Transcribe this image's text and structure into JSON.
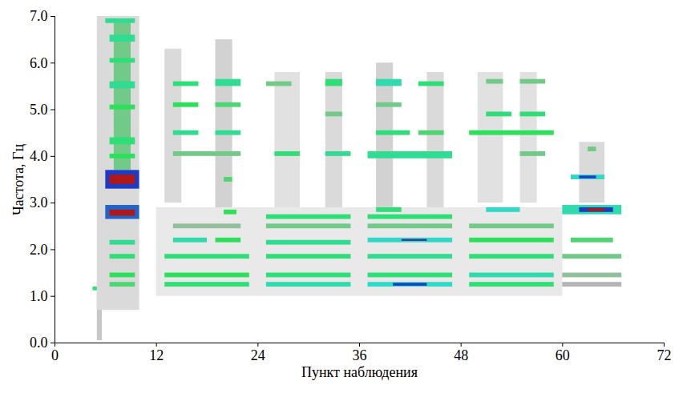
{
  "chart_data": {
    "type": "heatmap",
    "xlabel": "Пункт наблюдения",
    "ylabel": "Частота, Гц",
    "xlim": [
      0,
      72
    ],
    "xticks": [
      0,
      12,
      24,
      36,
      48,
      60,
      72
    ],
    "ylim": [
      0,
      7
    ],
    "yticks": [
      0,
      1,
      2,
      3,
      4,
      5,
      6,
      7
    ],
    "zlim": [
      0,
      1
    ],
    "colors": [
      "#ffffff",
      "#b4b4b4",
      "#2de05a",
      "#30d8c8",
      "#1c3cc8",
      "#b01818"
    ],
    "grid": false,
    "cells": [
      {
        "x1": 5,
        "x2": 5.6,
        "y1": 0.05,
        "y2": 1.3,
        "value": 0.15
      },
      {
        "x1": 5,
        "x2": 10,
        "y1": 0.7,
        "y2": 7,
        "value": 0.1
      },
      {
        "x1": 13,
        "x2": 15,
        "y1": 3.0,
        "y2": 6.3,
        "value": 0.1
      },
      {
        "x1": 19,
        "x2": 21,
        "y1": 2.5,
        "y2": 6.5,
        "value": 0.12
      },
      {
        "x1": 26,
        "x2": 29,
        "y1": 2.8,
        "y2": 5.8,
        "value": 0.08
      },
      {
        "x1": 32,
        "x2": 34,
        "y1": 2.8,
        "y2": 5.8,
        "value": 0.1
      },
      {
        "x1": 38,
        "x2": 40,
        "y1": 2.9,
        "y2": 6.0,
        "value": 0.12
      },
      {
        "x1": 44,
        "x2": 46,
        "y1": 2.8,
        "y2": 5.8,
        "value": 0.1
      },
      {
        "x1": 50,
        "x2": 53,
        "y1": 3.0,
        "y2": 5.8,
        "value": 0.08
      },
      {
        "x1": 55,
        "x2": 57,
        "y1": 3.0,
        "y2": 5.8,
        "value": 0.08
      },
      {
        "x1": 62,
        "x2": 65,
        "y1": 3.0,
        "y2": 4.3,
        "value": 0.1
      },
      {
        "x1": 12,
        "x2": 60,
        "y1": 1.0,
        "y2": 2.9,
        "value": 0.06
      },
      {
        "x1": 7,
        "x2": 9,
        "y1": 3.7,
        "y2": 6.9,
        "value": 0.3
      },
      {
        "x1": 6,
        "x2": 9.5,
        "y1": 6.85,
        "y2": 6.95,
        "value": 0.5
      },
      {
        "x1": 6.5,
        "x2": 9.5,
        "y1": 6.45,
        "y2": 6.6,
        "value": 0.5
      },
      {
        "x1": 6.5,
        "x2": 9.5,
        "y1": 6.0,
        "y2": 6.1,
        "value": 0.45
      },
      {
        "x1": 6.5,
        "x2": 9.5,
        "y1": 5.45,
        "y2": 5.6,
        "value": 0.5
      },
      {
        "x1": 6.5,
        "x2": 9.5,
        "y1": 5.0,
        "y2": 5.1,
        "value": 0.4
      },
      {
        "x1": 6.5,
        "x2": 9.5,
        "y1": 4.25,
        "y2": 4.4,
        "value": 0.45
      },
      {
        "x1": 6.5,
        "x2": 9.5,
        "y1": 3.95,
        "y2": 4.05,
        "value": 0.4
      },
      {
        "x1": 6,
        "x2": 10,
        "y1": 3.3,
        "y2": 3.7,
        "value": 0.8
      },
      {
        "x1": 6.5,
        "x2": 9.5,
        "y1": 3.4,
        "y2": 3.6,
        "value": 1
      },
      {
        "x1": 6,
        "x2": 10,
        "y1": 2.65,
        "y2": 2.95,
        "value": 0.75
      },
      {
        "x1": 6.5,
        "x2": 9.5,
        "y1": 2.72,
        "y2": 2.85,
        "value": 1
      },
      {
        "x1": 6.5,
        "x2": 9.5,
        "y1": 2.1,
        "y2": 2.2,
        "value": 0.5
      },
      {
        "x1": 6.5,
        "x2": 9.5,
        "y1": 1.8,
        "y2": 1.9,
        "value": 0.45
      },
      {
        "x1": 6.5,
        "x2": 9.5,
        "y1": 1.4,
        "y2": 1.5,
        "value": 0.4
      },
      {
        "x1": 6.5,
        "x2": 9.5,
        "y1": 1.2,
        "y2": 1.3,
        "value": 0.35
      },
      {
        "x1": 4.5,
        "x2": 5,
        "y1": 1.12,
        "y2": 1.2,
        "value": 0.45
      },
      {
        "x1": 13,
        "x2": 23,
        "y1": 1.2,
        "y2": 1.3,
        "value": 0.45
      },
      {
        "x1": 13,
        "x2": 23,
        "y1": 1.4,
        "y2": 1.5,
        "value": 0.4
      },
      {
        "x1": 13,
        "x2": 23,
        "y1": 1.8,
        "y2": 1.9,
        "value": 0.45
      },
      {
        "x1": 14,
        "x2": 18,
        "y1": 2.15,
        "y2": 2.25,
        "value": 0.55
      },
      {
        "x1": 19,
        "x2": 22,
        "y1": 2.15,
        "y2": 2.25,
        "value": 0.4
      },
      {
        "x1": 14,
        "x2": 22,
        "y1": 2.45,
        "y2": 2.55,
        "value": 0.25
      },
      {
        "x1": 20,
        "x2": 21.5,
        "y1": 2.75,
        "y2": 2.85,
        "value": 0.4
      },
      {
        "x1": 20,
        "x2": 21,
        "y1": 3.45,
        "y2": 3.55,
        "value": 0.35
      },
      {
        "x1": 14,
        "x2": 22,
        "y1": 4.0,
        "y2": 4.1,
        "value": 0.3
      },
      {
        "x1": 14,
        "x2": 17,
        "y1": 4.45,
        "y2": 4.55,
        "value": 0.5
      },
      {
        "x1": 19,
        "x2": 22,
        "y1": 4.45,
        "y2": 4.55,
        "value": 0.5
      },
      {
        "x1": 14,
        "x2": 17,
        "y1": 5.05,
        "y2": 5.15,
        "value": 0.4
      },
      {
        "x1": 19,
        "x2": 22,
        "y1": 5.05,
        "y2": 5.15,
        "value": 0.35
      },
      {
        "x1": 14,
        "x2": 17,
        "y1": 5.5,
        "y2": 5.6,
        "value": 0.45
      },
      {
        "x1": 19,
        "x2": 22,
        "y1": 5.5,
        "y2": 5.65,
        "value": 0.5
      },
      {
        "x1": 25,
        "x2": 35,
        "y1": 1.2,
        "y2": 1.3,
        "value": 0.55
      },
      {
        "x1": 25,
        "x2": 35,
        "y1": 1.4,
        "y2": 1.5,
        "value": 0.45
      },
      {
        "x1": 25,
        "x2": 35,
        "y1": 1.8,
        "y2": 1.9,
        "value": 0.45
      },
      {
        "x1": 25,
        "x2": 35,
        "y1": 2.1,
        "y2": 2.2,
        "value": 0.5
      },
      {
        "x1": 25,
        "x2": 35,
        "y1": 2.45,
        "y2": 2.55,
        "value": 0.3
      },
      {
        "x1": 25,
        "x2": 35,
        "y1": 2.65,
        "y2": 2.75,
        "value": 0.45
      },
      {
        "x1": 26,
        "x2": 29,
        "y1": 4.0,
        "y2": 4.1,
        "value": 0.45
      },
      {
        "x1": 32,
        "x2": 35,
        "y1": 4.0,
        "y2": 4.1,
        "value": 0.5
      },
      {
        "x1": 32,
        "x2": 34,
        "y1": 4.85,
        "y2": 4.95,
        "value": 0.3
      },
      {
        "x1": 25,
        "x2": 28,
        "y1": 5.5,
        "y2": 5.6,
        "value": 0.3
      },
      {
        "x1": 32,
        "x2": 34,
        "y1": 5.5,
        "y2": 5.65,
        "value": 0.45
      },
      {
        "x1": 37,
        "x2": 47,
        "y1": 1.2,
        "y2": 1.3,
        "value": 0.6
      },
      {
        "x1": 40,
        "x2": 44,
        "y1": 1.22,
        "y2": 1.28,
        "value": 0.8
      },
      {
        "x1": 37,
        "x2": 47,
        "y1": 1.4,
        "y2": 1.5,
        "value": 0.45
      },
      {
        "x1": 37,
        "x2": 47,
        "y1": 1.8,
        "y2": 1.9,
        "value": 0.5
      },
      {
        "x1": 37,
        "x2": 47,
        "y1": 2.15,
        "y2": 2.25,
        "value": 0.6
      },
      {
        "x1": 41,
        "x2": 44,
        "y1": 2.18,
        "y2": 2.22,
        "value": 0.85
      },
      {
        "x1": 37,
        "x2": 47,
        "y1": 2.45,
        "y2": 2.55,
        "value": 0.3
      },
      {
        "x1": 37,
        "x2": 47,
        "y1": 2.65,
        "y2": 2.75,
        "value": 0.45
      },
      {
        "x1": 38,
        "x2": 41,
        "y1": 2.8,
        "y2": 2.9,
        "value": 0.45
      },
      {
        "x1": 37,
        "x2": 47,
        "y1": 3.95,
        "y2": 4.1,
        "value": 0.5
      },
      {
        "x1": 38,
        "x2": 42,
        "y1": 4.45,
        "y2": 4.55,
        "value": 0.45
      },
      {
        "x1": 43,
        "x2": 46,
        "y1": 4.45,
        "y2": 4.55,
        "value": 0.35
      },
      {
        "x1": 38,
        "x2": 41,
        "y1": 5.05,
        "y2": 5.15,
        "value": 0.3
      },
      {
        "x1": 38,
        "x2": 41,
        "y1": 5.5,
        "y2": 5.65,
        "value": 0.55
      },
      {
        "x1": 43,
        "x2": 46,
        "y1": 5.5,
        "y2": 5.6,
        "value": 0.45
      },
      {
        "x1": 49,
        "x2": 59,
        "y1": 1.2,
        "y2": 1.3,
        "value": 0.45
      },
      {
        "x1": 49,
        "x2": 59,
        "y1": 1.4,
        "y2": 1.5,
        "value": 0.55
      },
      {
        "x1": 49,
        "x2": 59,
        "y1": 1.8,
        "y2": 1.9,
        "value": 0.45
      },
      {
        "x1": 49,
        "x2": 59,
        "y1": 2.15,
        "y2": 2.25,
        "value": 0.4
      },
      {
        "x1": 49,
        "x2": 59,
        "y1": 2.45,
        "y2": 2.55,
        "value": 0.3
      },
      {
        "x1": 51,
        "x2": 55,
        "y1": 2.8,
        "y2": 2.9,
        "value": 0.6
      },
      {
        "x1": 55,
        "x2": 58,
        "y1": 4.0,
        "y2": 4.1,
        "value": 0.3
      },
      {
        "x1": 49,
        "x2": 59,
        "y1": 4.45,
        "y2": 4.55,
        "value": 0.4
      },
      {
        "x1": 51,
        "x2": 54,
        "y1": 4.85,
        "y2": 4.95,
        "value": 0.45
      },
      {
        "x1": 55,
        "x2": 58,
        "y1": 4.85,
        "y2": 4.95,
        "value": 0.45
      },
      {
        "x1": 51,
        "x2": 53,
        "y1": 5.55,
        "y2": 5.65,
        "value": 0.3
      },
      {
        "x1": 55,
        "x2": 58,
        "y1": 5.55,
        "y2": 5.65,
        "value": 0.3
      },
      {
        "x1": 60,
        "x2": 67,
        "y1": 1.2,
        "y2": 1.3,
        "value": 0.2
      },
      {
        "x1": 60,
        "x2": 67,
        "y1": 1.4,
        "y2": 1.5,
        "value": 0.25
      },
      {
        "x1": 60,
        "x2": 67,
        "y1": 1.8,
        "y2": 1.9,
        "value": 0.3
      },
      {
        "x1": 61,
        "x2": 66,
        "y1": 2.15,
        "y2": 2.25,
        "value": 0.35
      },
      {
        "x1": 60,
        "x2": 67,
        "y1": 2.75,
        "y2": 2.95,
        "value": 0.55
      },
      {
        "x1": 62,
        "x2": 66,
        "y1": 2.8,
        "y2": 2.9,
        "value": 0.8
      },
      {
        "x1": 63,
        "x2": 65,
        "y1": 2.82,
        "y2": 2.88,
        "value": 1
      },
      {
        "x1": 61,
        "x2": 65,
        "y1": 3.5,
        "y2": 3.6,
        "value": 0.6
      },
      {
        "x1": 62,
        "x2": 64,
        "y1": 3.52,
        "y2": 3.58,
        "value": 0.8
      },
      {
        "x1": 63,
        "x2": 64,
        "y1": 4.1,
        "y2": 4.2,
        "value": 0.3
      }
    ]
  }
}
